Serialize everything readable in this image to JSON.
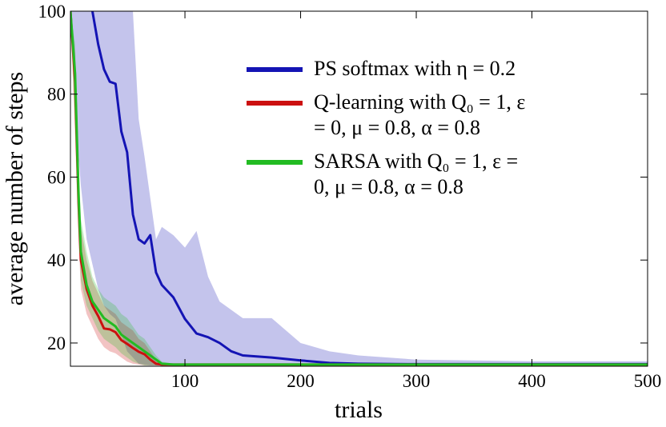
{
  "chart_data": {
    "type": "line",
    "xlabel": "trials",
    "ylabel": "average number of steps",
    "x": [
      1,
      5,
      8,
      10,
      15,
      20,
      25,
      30,
      35,
      40,
      45,
      50,
      55,
      60,
      65,
      70,
      75,
      80,
      90,
      100,
      110,
      120,
      130,
      140,
      150,
      175,
      200,
      225,
      250,
      300,
      350,
      400,
      450,
      500
    ],
    "series": [
      {
        "name": "PS softmax with η = 0.2",
        "color": "#1414b4",
        "values": [
          null,
          null,
          null,
          null,
          null,
          100,
          92,
          86,
          83,
          82.5,
          71,
          66,
          51,
          45,
          44,
          46,
          37,
          34,
          31,
          25.8,
          22.3,
          21.4,
          20,
          18,
          17,
          16.5,
          15.8,
          15.2,
          15,
          14.9,
          14.9,
          14.9,
          14.9,
          14.9
        ],
        "upper": [
          100,
          100,
          100,
          100,
          100,
          100,
          100,
          100,
          100,
          100,
          100,
          100,
          100,
          74,
          65,
          55,
          45,
          48,
          46,
          43,
          47,
          36,
          30,
          28,
          26,
          26,
          20,
          18,
          17,
          16,
          15.8,
          15.6,
          15.6,
          15.6
        ],
        "lower": [
          100,
          80,
          65,
          58,
          45,
          39,
          33,
          29,
          27,
          25.8,
          22,
          18,
          16.5,
          15,
          14.8,
          14.6,
          14.6,
          14.6,
          14.6,
          14.6,
          14.6,
          14.6,
          14.6,
          14.6,
          14.6,
          14.6,
          14.6,
          14.6,
          14.6,
          14.6,
          14.6,
          14.6,
          14.6,
          14.6
        ]
      },
      {
        "name": "Q-learning with Q₀ = 1, ε = 0, μ = 0.8, α = 0.8",
        "color": "#cc1010",
        "values": [
          100,
          83,
          54,
          40,
          33,
          29,
          26.5,
          23.5,
          23.3,
          22.6,
          20.7,
          19.8,
          18.8,
          17.9,
          17.3,
          16,
          15,
          14.8,
          14.8,
          14.8,
          14.8,
          14.8,
          14.8,
          14.8,
          14.8,
          14.8,
          14.8,
          14.8,
          14.8,
          14.8,
          14.8,
          14.8,
          14.8,
          14.8
        ],
        "upper": [
          100,
          90,
          62,
          48,
          40,
          35,
          32,
          29,
          28,
          27,
          25,
          24,
          23,
          21,
          20,
          18,
          16,
          15.2,
          15,
          15,
          15,
          15,
          15,
          15,
          15,
          15,
          15,
          15,
          15,
          15,
          15,
          15,
          15,
          15
        ],
        "lower": [
          100,
          70,
          45,
          33,
          27,
          24,
          21,
          19,
          18,
          17.5,
          16.5,
          15.5,
          15,
          14.8,
          14.6,
          14.6,
          14.6,
          14.6,
          14.6,
          14.6,
          14.6,
          14.6,
          14.6,
          14.6,
          14.6,
          14.6,
          14.6,
          14.6,
          14.6,
          14.6,
          14.6,
          14.6,
          14.6,
          14.6
        ]
      },
      {
        "name": "SARSA with Q₀ = 1, ε = 0, μ = 0.8, α = 0.8",
        "color": "#22bb22",
        "values": [
          100,
          85,
          56,
          42,
          34,
          30,
          28,
          26,
          25,
          24,
          22,
          21,
          20,
          19,
          18,
          17,
          16,
          15,
          14.8,
          14.8,
          14.8,
          14.8,
          14.8,
          14.8,
          14.8,
          14.8,
          14.8,
          14.8,
          14.8,
          14.8,
          14.8,
          14.8,
          14.8,
          14.8
        ],
        "upper": [
          100,
          92,
          64,
          50,
          42,
          36,
          33,
          31,
          30,
          29,
          27,
          26,
          24,
          22,
          21,
          19,
          17,
          15.5,
          15,
          15,
          15,
          15,
          15,
          15,
          15,
          15,
          15,
          15,
          15,
          15,
          15,
          15,
          15,
          15
        ],
        "lower": [
          100,
          72,
          47,
          35,
          29,
          26,
          23,
          21,
          20,
          19,
          17.5,
          16.5,
          15.5,
          15,
          14.6,
          14.6,
          14.6,
          14.6,
          14.6,
          14.6,
          14.6,
          14.6,
          14.6,
          14.6,
          14.6,
          14.6,
          14.6,
          14.6,
          14.6,
          14.6,
          14.6,
          14.6,
          14.6,
          14.6
        ]
      }
    ],
    "xlim": [
      1,
      500
    ],
    "ylim": [
      14.4,
      100
    ],
    "xticks": [
      100,
      200,
      300,
      400,
      500
    ],
    "yticks": [
      20,
      40,
      60,
      80,
      100
    ],
    "legend": "upper right"
  }
}
